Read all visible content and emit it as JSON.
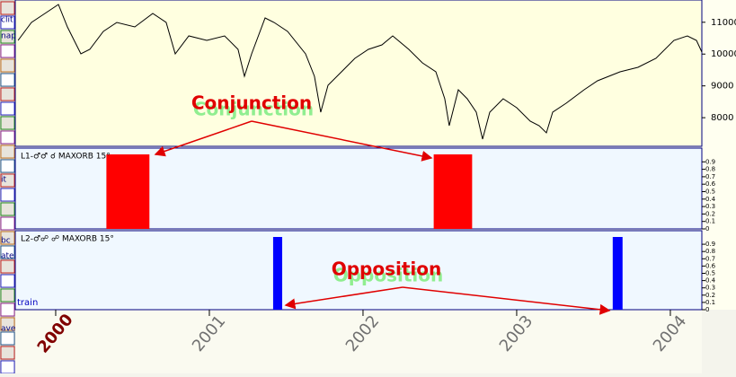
{
  "toolbar": [
    "clit",
    "nap",
    "it",
    "bc",
    "ate",
    "ave"
  ],
  "annotations": [
    "Conjunction",
    "Opposition"
  ],
  "chart_data": [
    {
      "type": "line",
      "color": "#000000",
      "x": [
        1999.755,
        1999.842,
        1999.93,
        2000.018,
        2000.076,
        2000.164,
        2000.222,
        2000.31,
        2000.398,
        2000.515,
        2000.632,
        2000.719,
        2000.778,
        2000.866,
        2000.983,
        2001.099,
        2001.187,
        2001.228,
        2001.275,
        2001.363,
        2001.421,
        2001.509,
        2001.626,
        2001.684,
        2001.725,
        2001.772,
        2001.86,
        2001.947,
        2002.035,
        2002.123,
        2002.193,
        2002.298,
        2002.386,
        2002.474,
        2002.532,
        2002.561,
        2002.62,
        2002.678,
        2002.737,
        2002.778,
        2002.825,
        2002.912,
        2003.0,
        2003.088,
        2003.146,
        2003.193,
        2003.234,
        2003.322,
        2003.439,
        2003.526,
        2003.673,
        2003.789,
        2003.906,
        2004.023,
        2004.111,
        2004.17,
        2004.205
      ],
      "values": [
        10430,
        10995,
        11277,
        11559,
        10853,
        10007,
        10148,
        10712,
        10994,
        10853,
        11277,
        10994,
        10007,
        10571,
        10430,
        10571,
        10148,
        9301,
        10007,
        11136,
        10994,
        10712,
        10007,
        9301,
        8172,
        9019,
        9442,
        9865,
        10148,
        10289,
        10571,
        10148,
        9724,
        9442,
        8596,
        7749,
        8878,
        8596,
        8172,
        7326,
        8172,
        8596,
        8313,
        7890,
        7749,
        7523,
        8172,
        8455,
        8878,
        9160,
        9442,
        9583,
        9865,
        10430,
        10571,
        10430,
        10063
      ],
      "xlim": [
        1999.737,
        2004.205
      ],
      "xticks": [
        2000,
        2001,
        2002,
        2003,
        2004
      ],
      "ylim": [
        7100,
        11700
      ],
      "yticks": [
        8000,
        9000,
        10000,
        11000
      ]
    },
    {
      "type": "span",
      "title": "L1-♂♂ ☌ MAXORB 15°",
      "color": "#ff0000",
      "x_start": [
        2000.33,
        2002.46
      ],
      "x_end": [
        2000.61,
        2002.71
      ],
      "values": [
        1,
        1
      ],
      "xlim": [
        1999.737,
        2004.205
      ],
      "ylim": [
        0,
        1
      ],
      "yticks": [
        0,
        0.1,
        0.2,
        0.3,
        0.4,
        0.5,
        0.6,
        0.7,
        0.8,
        0.9
      ]
    },
    {
      "type": "span",
      "title": "L2-♂☍ ☍ MAXORB 15°",
      "color": "#0000ff",
      "note": "train",
      "x_start": [
        2001.415,
        2003.625
      ],
      "x_end": [
        2001.474,
        2003.689
      ],
      "values": [
        1,
        1
      ],
      "xlim": [
        1999.737,
        2004.205
      ],
      "ylim": [
        0,
        1
      ],
      "yticks": [
        0,
        0.1,
        0.2,
        0.3,
        0.4,
        0.5,
        0.6,
        0.7,
        0.8,
        0.9
      ]
    }
  ]
}
